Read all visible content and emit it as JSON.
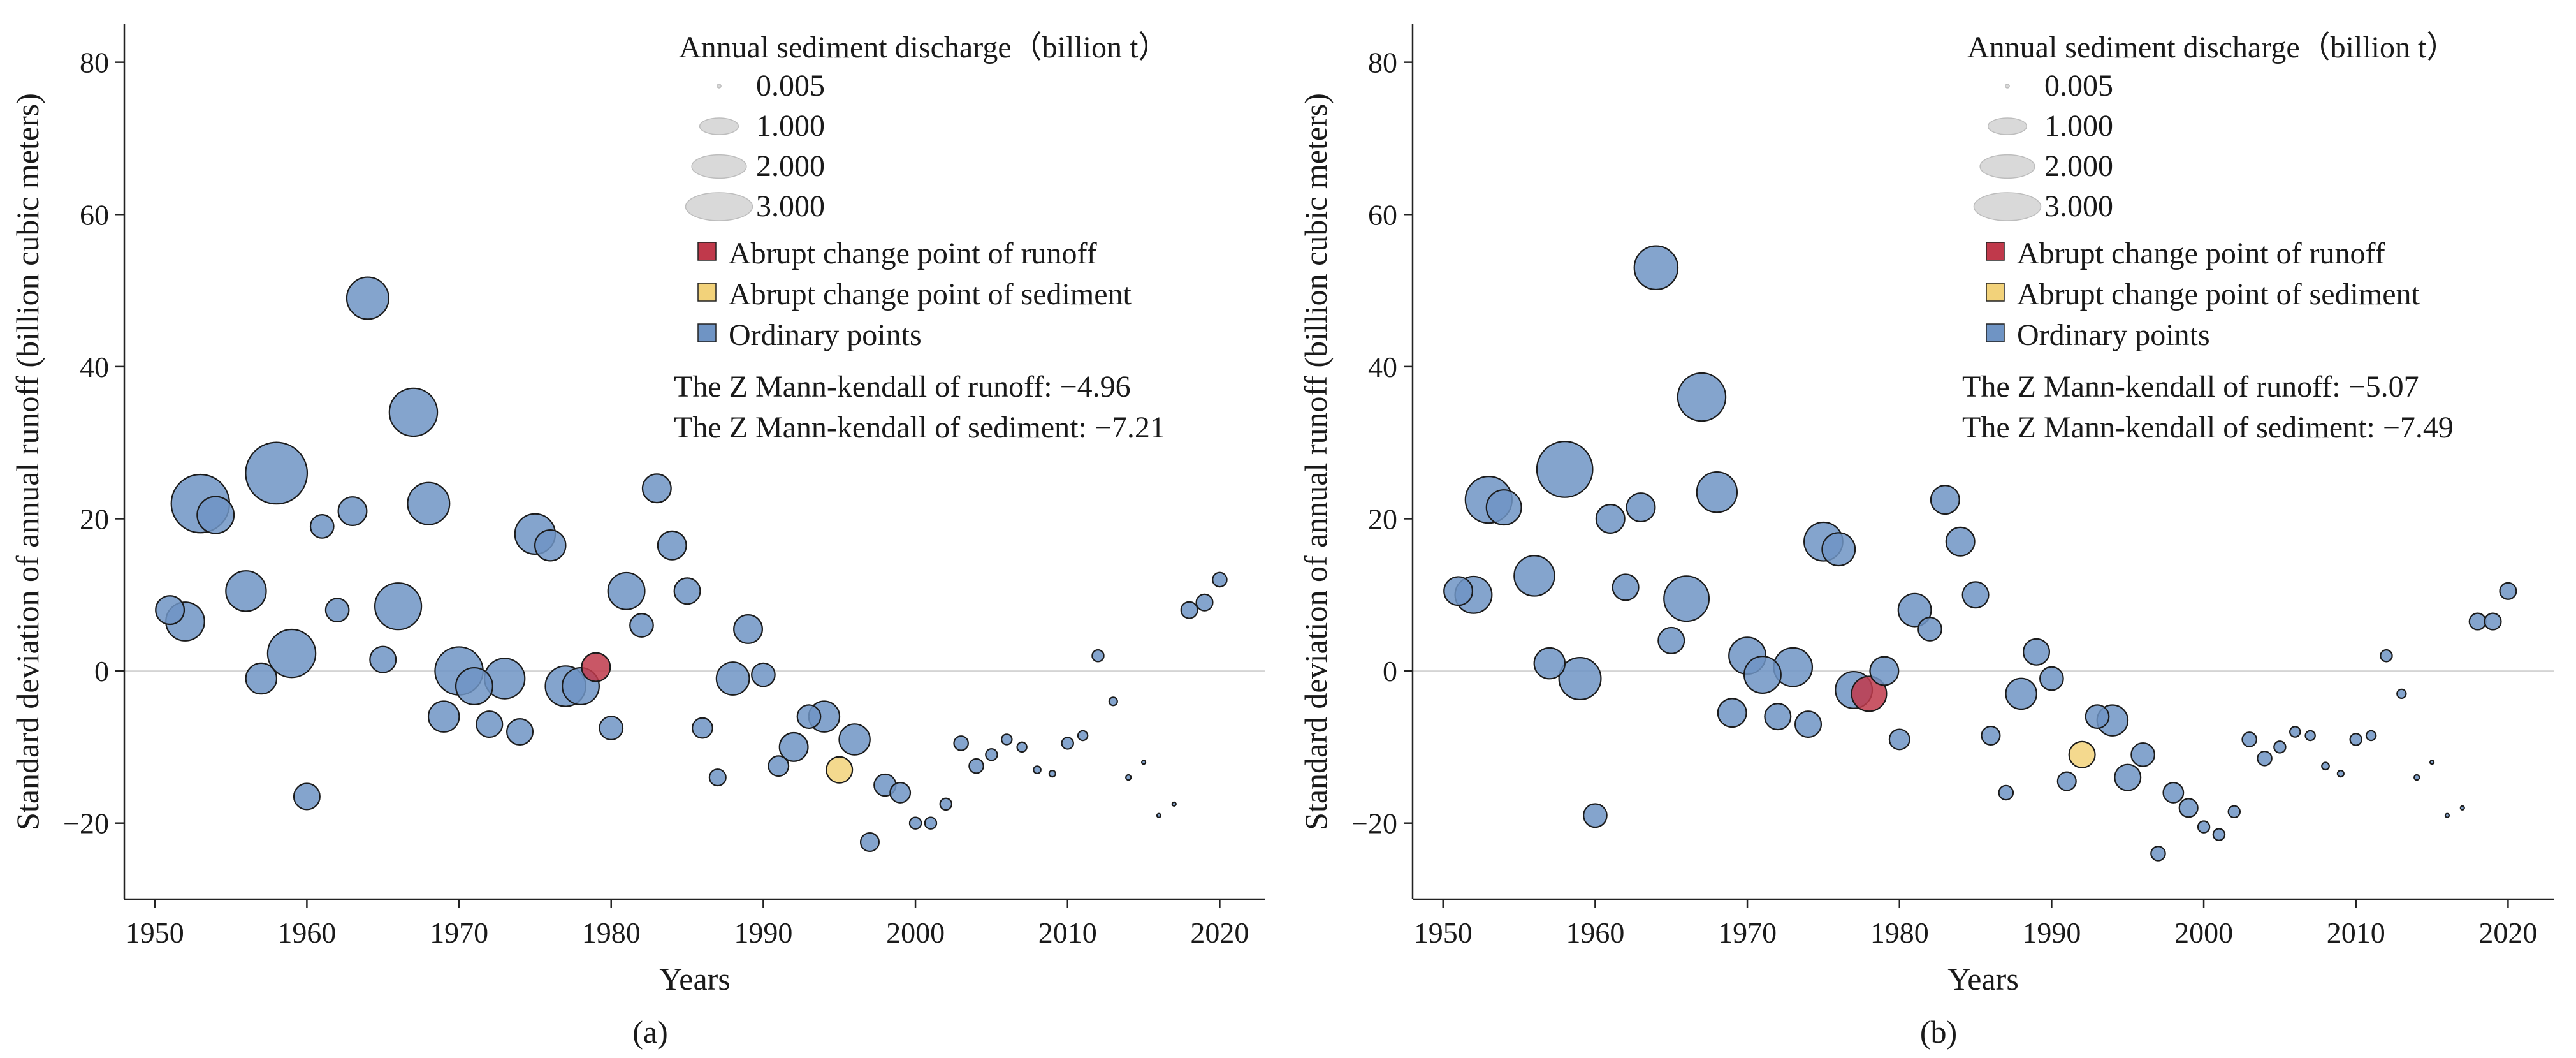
{
  "colors": {
    "ordinary": "#6f94c4",
    "runoff_change": "#c0394b",
    "sediment_change": "#f2d27a",
    "size_legend": "#d9d9d9"
  },
  "chart_data": [
    {
      "type": "scatter",
      "panel_label": "(a)",
      "xlabel": "Years",
      "ylabel": "Standard deviation of annual runoff (billion cubic meters)",
      "xlim": [
        1948,
        2023
      ],
      "ylim": [
        -30,
        85
      ],
      "xticks": [
        1950,
        1960,
        1970,
        1980,
        1990,
        2000,
        2010,
        2020
      ],
      "yticks": [
        -20,
        0,
        20,
        40,
        60,
        80
      ],
      "grid": false,
      "legend_position": "top-right",
      "size_legend": {
        "title": "Annual sediment discharge（billion t）",
        "entries": [
          {
            "label": "0.005",
            "value": 0.005
          },
          {
            "label": "1.000",
            "value": 1.0
          },
          {
            "label": "2.000",
            "value": 2.0
          },
          {
            "label": "3.000",
            "value": 3.0
          }
        ]
      },
      "color_legend": [
        {
          "label": "Abrupt change point of runoff",
          "type": "runoff_change"
        },
        {
          "label": "Abrupt change point of sediment",
          "type": "sediment_change"
        },
        {
          "label": "Ordinary points",
          "type": "ordinary"
        }
      ],
      "stats": [
        "The Z Mann-kendall of runoff: −4.96",
        "The Z Mann-kendall of sediment: −7.21"
      ],
      "points": [
        {
          "x": 1951,
          "y": 8.0,
          "s": 0.6,
          "type": "ordinary"
        },
        {
          "x": 1952,
          "y": 6.5,
          "s": 1.1,
          "type": "ordinary"
        },
        {
          "x": 1953,
          "y": 22.0,
          "s": 2.5,
          "type": "ordinary"
        },
        {
          "x": 1954,
          "y": 20.5,
          "s": 1.0,
          "type": "ordinary"
        },
        {
          "x": 1956,
          "y": 10.5,
          "s": 1.2,
          "type": "ordinary"
        },
        {
          "x": 1957,
          "y": -1.0,
          "s": 0.7,
          "type": "ordinary"
        },
        {
          "x": 1958,
          "y": 26.0,
          "s": 2.8,
          "type": "ordinary"
        },
        {
          "x": 1959,
          "y": 2.3,
          "s": 1.7,
          "type": "ordinary"
        },
        {
          "x": 1960,
          "y": -16.5,
          "s": 0.5,
          "type": "ordinary"
        },
        {
          "x": 1961,
          "y": 19.0,
          "s": 0.4,
          "type": "ordinary"
        },
        {
          "x": 1962,
          "y": 8.0,
          "s": 0.4,
          "type": "ordinary"
        },
        {
          "x": 1963,
          "y": 21.0,
          "s": 0.6,
          "type": "ordinary"
        },
        {
          "x": 1964,
          "y": 49.0,
          "s": 1.3,
          "type": "ordinary"
        },
        {
          "x": 1965,
          "y": 1.5,
          "s": 0.5,
          "type": "ordinary"
        },
        {
          "x": 1966,
          "y": 8.5,
          "s": 1.6,
          "type": "ordinary"
        },
        {
          "x": 1967,
          "y": 34.0,
          "s": 1.7,
          "type": "ordinary"
        },
        {
          "x": 1968,
          "y": 22.0,
          "s": 1.3,
          "type": "ordinary"
        },
        {
          "x": 1969,
          "y": -6.0,
          "s": 0.7,
          "type": "ordinary"
        },
        {
          "x": 1970,
          "y": 0.0,
          "s": 1.7,
          "type": "ordinary"
        },
        {
          "x": 1971,
          "y": -2.0,
          "s": 1.0,
          "type": "ordinary"
        },
        {
          "x": 1972,
          "y": -7.0,
          "s": 0.5,
          "type": "ordinary"
        },
        {
          "x": 1973,
          "y": -1.0,
          "s": 1.2,
          "type": "ordinary"
        },
        {
          "x": 1974,
          "y": -8.0,
          "s": 0.5,
          "type": "ordinary"
        },
        {
          "x": 1975,
          "y": 18.0,
          "s": 1.2,
          "type": "ordinary"
        },
        {
          "x": 1976,
          "y": 16.5,
          "s": 0.7,
          "type": "ordinary"
        },
        {
          "x": 1977,
          "y": -2.0,
          "s": 1.2,
          "type": "ordinary"
        },
        {
          "x": 1978,
          "y": -2.0,
          "s": 1.0,
          "type": "ordinary"
        },
        {
          "x": 1979,
          "y": 0.5,
          "s": 0.6,
          "type": "runoff_change"
        },
        {
          "x": 1980,
          "y": -7.5,
          "s": 0.4,
          "type": "ordinary"
        },
        {
          "x": 1981,
          "y": 10.5,
          "s": 1.0,
          "type": "ordinary"
        },
        {
          "x": 1982,
          "y": 6.0,
          "s": 0.4,
          "type": "ordinary"
        },
        {
          "x": 1983,
          "y": 24.0,
          "s": 0.6,
          "type": "ordinary"
        },
        {
          "x": 1984,
          "y": 16.5,
          "s": 0.6,
          "type": "ordinary"
        },
        {
          "x": 1985,
          "y": 10.5,
          "s": 0.5,
          "type": "ordinary"
        },
        {
          "x": 1986,
          "y": -7.5,
          "s": 0.3,
          "type": "ordinary"
        },
        {
          "x": 1987,
          "y": -14.0,
          "s": 0.2,
          "type": "ordinary"
        },
        {
          "x": 1988,
          "y": -1.0,
          "s": 0.8,
          "type": "ordinary"
        },
        {
          "x": 1989,
          "y": 5.5,
          "s": 0.6,
          "type": "ordinary"
        },
        {
          "x": 1990,
          "y": -0.5,
          "s": 0.4,
          "type": "ordinary"
        },
        {
          "x": 1991,
          "y": -12.5,
          "s": 0.3,
          "type": "ordinary"
        },
        {
          "x": 1992,
          "y": -10.0,
          "s": 0.6,
          "type": "ordinary"
        },
        {
          "x": 1993,
          "y": -6.0,
          "s": 0.4,
          "type": "ordinary"
        },
        {
          "x": 1994,
          "y": -6.0,
          "s": 0.7,
          "type": "ordinary"
        },
        {
          "x": 1995,
          "y": -13.0,
          "s": 0.5,
          "type": "sediment_change"
        },
        {
          "x": 1996,
          "y": -9.0,
          "s": 0.7,
          "type": "ordinary"
        },
        {
          "x": 1997,
          "y": -22.5,
          "s": 0.25,
          "type": "ordinary"
        },
        {
          "x": 1998,
          "y": -15.0,
          "s": 0.35,
          "type": "ordinary"
        },
        {
          "x": 1999,
          "y": -16.0,
          "s": 0.3,
          "type": "ordinary"
        },
        {
          "x": 2000,
          "y": -20.0,
          "s": 0.1,
          "type": "ordinary"
        },
        {
          "x": 2001,
          "y": -20.0,
          "s": 0.1,
          "type": "ordinary"
        },
        {
          "x": 2002,
          "y": -17.5,
          "s": 0.1,
          "type": "ordinary"
        },
        {
          "x": 2003,
          "y": -9.5,
          "s": 0.15,
          "type": "ordinary"
        },
        {
          "x": 2004,
          "y": -12.5,
          "s": 0.15,
          "type": "ordinary"
        },
        {
          "x": 2005,
          "y": -11.0,
          "s": 0.1,
          "type": "ordinary"
        },
        {
          "x": 2006,
          "y": -9.0,
          "s": 0.08,
          "type": "ordinary"
        },
        {
          "x": 2007,
          "y": -10.0,
          "s": 0.07,
          "type": "ordinary"
        },
        {
          "x": 2008,
          "y": -13.0,
          "s": 0.04,
          "type": "ordinary"
        },
        {
          "x": 2009,
          "y": -13.5,
          "s": 0.03,
          "type": "ordinary"
        },
        {
          "x": 2010,
          "y": -9.5,
          "s": 0.1,
          "type": "ordinary"
        },
        {
          "x": 2011,
          "y": -8.5,
          "s": 0.07,
          "type": "ordinary"
        },
        {
          "x": 2012,
          "y": 2.0,
          "s": 0.1,
          "type": "ordinary"
        },
        {
          "x": 2013,
          "y": -4.0,
          "s": 0.05,
          "type": "ordinary"
        },
        {
          "x": 2014,
          "y": -14.0,
          "s": 0.02,
          "type": "ordinary"
        },
        {
          "x": 2015,
          "y": -12.0,
          "s": 0.01,
          "type": "ordinary"
        },
        {
          "x": 2016,
          "y": -19.0,
          "s": 0.005,
          "type": "ordinary"
        },
        {
          "x": 2017,
          "y": -17.5,
          "s": 0.005,
          "type": "ordinary"
        },
        {
          "x": 2018,
          "y": 8.0,
          "s": 0.2,
          "type": "ordinary"
        },
        {
          "x": 2019,
          "y": 9.0,
          "s": 0.2,
          "type": "ordinary"
        },
        {
          "x": 2020,
          "y": 12.0,
          "s": 0.15,
          "type": "ordinary"
        }
      ]
    },
    {
      "type": "scatter",
      "panel_label": "(b)",
      "xlabel": "Years",
      "ylabel": "Standard deviation of annual runoff (billion cubic meters)",
      "xlim": [
        1948,
        2023
      ],
      "ylim": [
        -30,
        85
      ],
      "xticks": [
        1950,
        1960,
        1970,
        1980,
        1990,
        2000,
        2010,
        2020
      ],
      "yticks": [
        -20,
        0,
        20,
        40,
        60,
        80
      ],
      "grid": false,
      "legend_position": "top-right",
      "size_legend": {
        "title": "Annual sediment discharge（billion t）",
        "entries": [
          {
            "label": "0.005",
            "value": 0.005
          },
          {
            "label": "1.000",
            "value": 1.0
          },
          {
            "label": "2.000",
            "value": 2.0
          },
          {
            "label": "3.000",
            "value": 3.0
          }
        ]
      },
      "color_legend": [
        {
          "label": "Abrupt change point of runoff",
          "type": "runoff_change"
        },
        {
          "label": "Abrupt change point of sediment",
          "type": "sediment_change"
        },
        {
          "label": "Ordinary points",
          "type": "ordinary"
        }
      ],
      "stats": [
        "The Z Mann-kendall of runoff: −5.07",
        "The Z Mann-kendall of sediment: −7.49"
      ],
      "points": [
        {
          "x": 1951,
          "y": 10.5,
          "s": 0.6,
          "type": "ordinary"
        },
        {
          "x": 1952,
          "y": 10.0,
          "s": 1.0,
          "type": "ordinary"
        },
        {
          "x": 1953,
          "y": 22.5,
          "s": 1.6,
          "type": "ordinary"
        },
        {
          "x": 1954,
          "y": 21.5,
          "s": 0.9,
          "type": "ordinary"
        },
        {
          "x": 1956,
          "y": 12.5,
          "s": 1.2,
          "type": "ordinary"
        },
        {
          "x": 1957,
          "y": 1.0,
          "s": 0.7,
          "type": "ordinary"
        },
        {
          "x": 1958,
          "y": 26.5,
          "s": 2.3,
          "type": "ordinary"
        },
        {
          "x": 1959,
          "y": -1.0,
          "s": 1.3,
          "type": "ordinary"
        },
        {
          "x": 1960,
          "y": -19.0,
          "s": 0.4,
          "type": "ordinary"
        },
        {
          "x": 1961,
          "y": 20.0,
          "s": 0.6,
          "type": "ordinary"
        },
        {
          "x": 1962,
          "y": 11.0,
          "s": 0.5,
          "type": "ordinary"
        },
        {
          "x": 1963,
          "y": 21.5,
          "s": 0.6,
          "type": "ordinary"
        },
        {
          "x": 1964,
          "y": 53.0,
          "s": 1.4,
          "type": "ordinary"
        },
        {
          "x": 1965,
          "y": 4.0,
          "s": 0.5,
          "type": "ordinary"
        },
        {
          "x": 1966,
          "y": 9.5,
          "s": 1.5,
          "type": "ordinary"
        },
        {
          "x": 1967,
          "y": 36.0,
          "s": 1.7,
          "type": "ordinary"
        },
        {
          "x": 1968,
          "y": 23.5,
          "s": 1.2,
          "type": "ordinary"
        },
        {
          "x": 1969,
          "y": -5.5,
          "s": 0.6,
          "type": "ordinary"
        },
        {
          "x": 1970,
          "y": 2.0,
          "s": 1.0,
          "type": "ordinary"
        },
        {
          "x": 1971,
          "y": -0.5,
          "s": 1.0,
          "type": "ordinary"
        },
        {
          "x": 1972,
          "y": -6.0,
          "s": 0.5,
          "type": "ordinary"
        },
        {
          "x": 1973,
          "y": 0.5,
          "s": 1.1,
          "type": "ordinary"
        },
        {
          "x": 1974,
          "y": -7.0,
          "s": 0.5,
          "type": "ordinary"
        },
        {
          "x": 1975,
          "y": 17.0,
          "s": 1.1,
          "type": "ordinary"
        },
        {
          "x": 1976,
          "y": 16.0,
          "s": 0.8,
          "type": "ordinary"
        },
        {
          "x": 1977,
          "y": -2.5,
          "s": 1.0,
          "type": "ordinary"
        },
        {
          "x": 1978,
          "y": -3.0,
          "s": 0.9,
          "type": "runoff_change"
        },
        {
          "x": 1979,
          "y": 0.0,
          "s": 0.6,
          "type": "ordinary"
        },
        {
          "x": 1980,
          "y": -9.0,
          "s": 0.3,
          "type": "ordinary"
        },
        {
          "x": 1981,
          "y": 8.0,
          "s": 0.8,
          "type": "ordinary"
        },
        {
          "x": 1982,
          "y": 5.5,
          "s": 0.4,
          "type": "ordinary"
        },
        {
          "x": 1983,
          "y": 22.5,
          "s": 0.6,
          "type": "ordinary"
        },
        {
          "x": 1984,
          "y": 17.0,
          "s": 0.6,
          "type": "ordinary"
        },
        {
          "x": 1985,
          "y": 10.0,
          "s": 0.5,
          "type": "ordinary"
        },
        {
          "x": 1986,
          "y": -8.5,
          "s": 0.25,
          "type": "ordinary"
        },
        {
          "x": 1987,
          "y": -16.0,
          "s": 0.15,
          "type": "ordinary"
        },
        {
          "x": 1988,
          "y": -3.0,
          "s": 0.7,
          "type": "ordinary"
        },
        {
          "x": 1989,
          "y": 2.5,
          "s": 0.5,
          "type": "ordinary"
        },
        {
          "x": 1990,
          "y": -1.0,
          "s": 0.4,
          "type": "ordinary"
        },
        {
          "x": 1991,
          "y": -14.5,
          "s": 0.25,
          "type": "ordinary"
        },
        {
          "x": 1992,
          "y": -11.0,
          "s": 0.5,
          "type": "sediment_change"
        },
        {
          "x": 1993,
          "y": -6.0,
          "s": 0.4,
          "type": "ordinary"
        },
        {
          "x": 1994,
          "y": -6.5,
          "s": 0.7,
          "type": "ordinary"
        },
        {
          "x": 1995,
          "y": -14.0,
          "s": 0.5,
          "type": "ordinary"
        },
        {
          "x": 1996,
          "y": -11.0,
          "s": 0.4,
          "type": "ordinary"
        },
        {
          "x": 1997,
          "y": -24.0,
          "s": 0.15,
          "type": "ordinary"
        },
        {
          "x": 1998,
          "y": -16.0,
          "s": 0.3,
          "type": "ordinary"
        },
        {
          "x": 1999,
          "y": -18.0,
          "s": 0.25,
          "type": "ordinary"
        },
        {
          "x": 2000,
          "y": -20.5,
          "s": 0.1,
          "type": "ordinary"
        },
        {
          "x": 2001,
          "y": -21.5,
          "s": 0.1,
          "type": "ordinary"
        },
        {
          "x": 2002,
          "y": -18.5,
          "s": 0.1,
          "type": "ordinary"
        },
        {
          "x": 2003,
          "y": -9.0,
          "s": 0.15,
          "type": "ordinary"
        },
        {
          "x": 2004,
          "y": -11.5,
          "s": 0.15,
          "type": "ordinary"
        },
        {
          "x": 2005,
          "y": -10.0,
          "s": 0.1,
          "type": "ordinary"
        },
        {
          "x": 2006,
          "y": -8.0,
          "s": 0.08,
          "type": "ordinary"
        },
        {
          "x": 2007,
          "y": -8.5,
          "s": 0.07,
          "type": "ordinary"
        },
        {
          "x": 2008,
          "y": -12.5,
          "s": 0.04,
          "type": "ordinary"
        },
        {
          "x": 2009,
          "y": -13.5,
          "s": 0.03,
          "type": "ordinary"
        },
        {
          "x": 2010,
          "y": -9.0,
          "s": 0.1,
          "type": "ordinary"
        },
        {
          "x": 2011,
          "y": -8.5,
          "s": 0.07,
          "type": "ordinary"
        },
        {
          "x": 2012,
          "y": 2.0,
          "s": 0.1,
          "type": "ordinary"
        },
        {
          "x": 2013,
          "y": -3.0,
          "s": 0.06,
          "type": "ordinary"
        },
        {
          "x": 2014,
          "y": -14.0,
          "s": 0.02,
          "type": "ordinary"
        },
        {
          "x": 2015,
          "y": -12.0,
          "s": 0.01,
          "type": "ordinary"
        },
        {
          "x": 2016,
          "y": -19.0,
          "s": 0.005,
          "type": "ordinary"
        },
        {
          "x": 2017,
          "y": -18.0,
          "s": 0.005,
          "type": "ordinary"
        },
        {
          "x": 2018,
          "y": 6.5,
          "s": 0.2,
          "type": "ordinary"
        },
        {
          "x": 2019,
          "y": 6.5,
          "s": 0.2,
          "type": "ordinary"
        },
        {
          "x": 2020,
          "y": 10.5,
          "s": 0.2,
          "type": "ordinary"
        }
      ]
    }
  ]
}
